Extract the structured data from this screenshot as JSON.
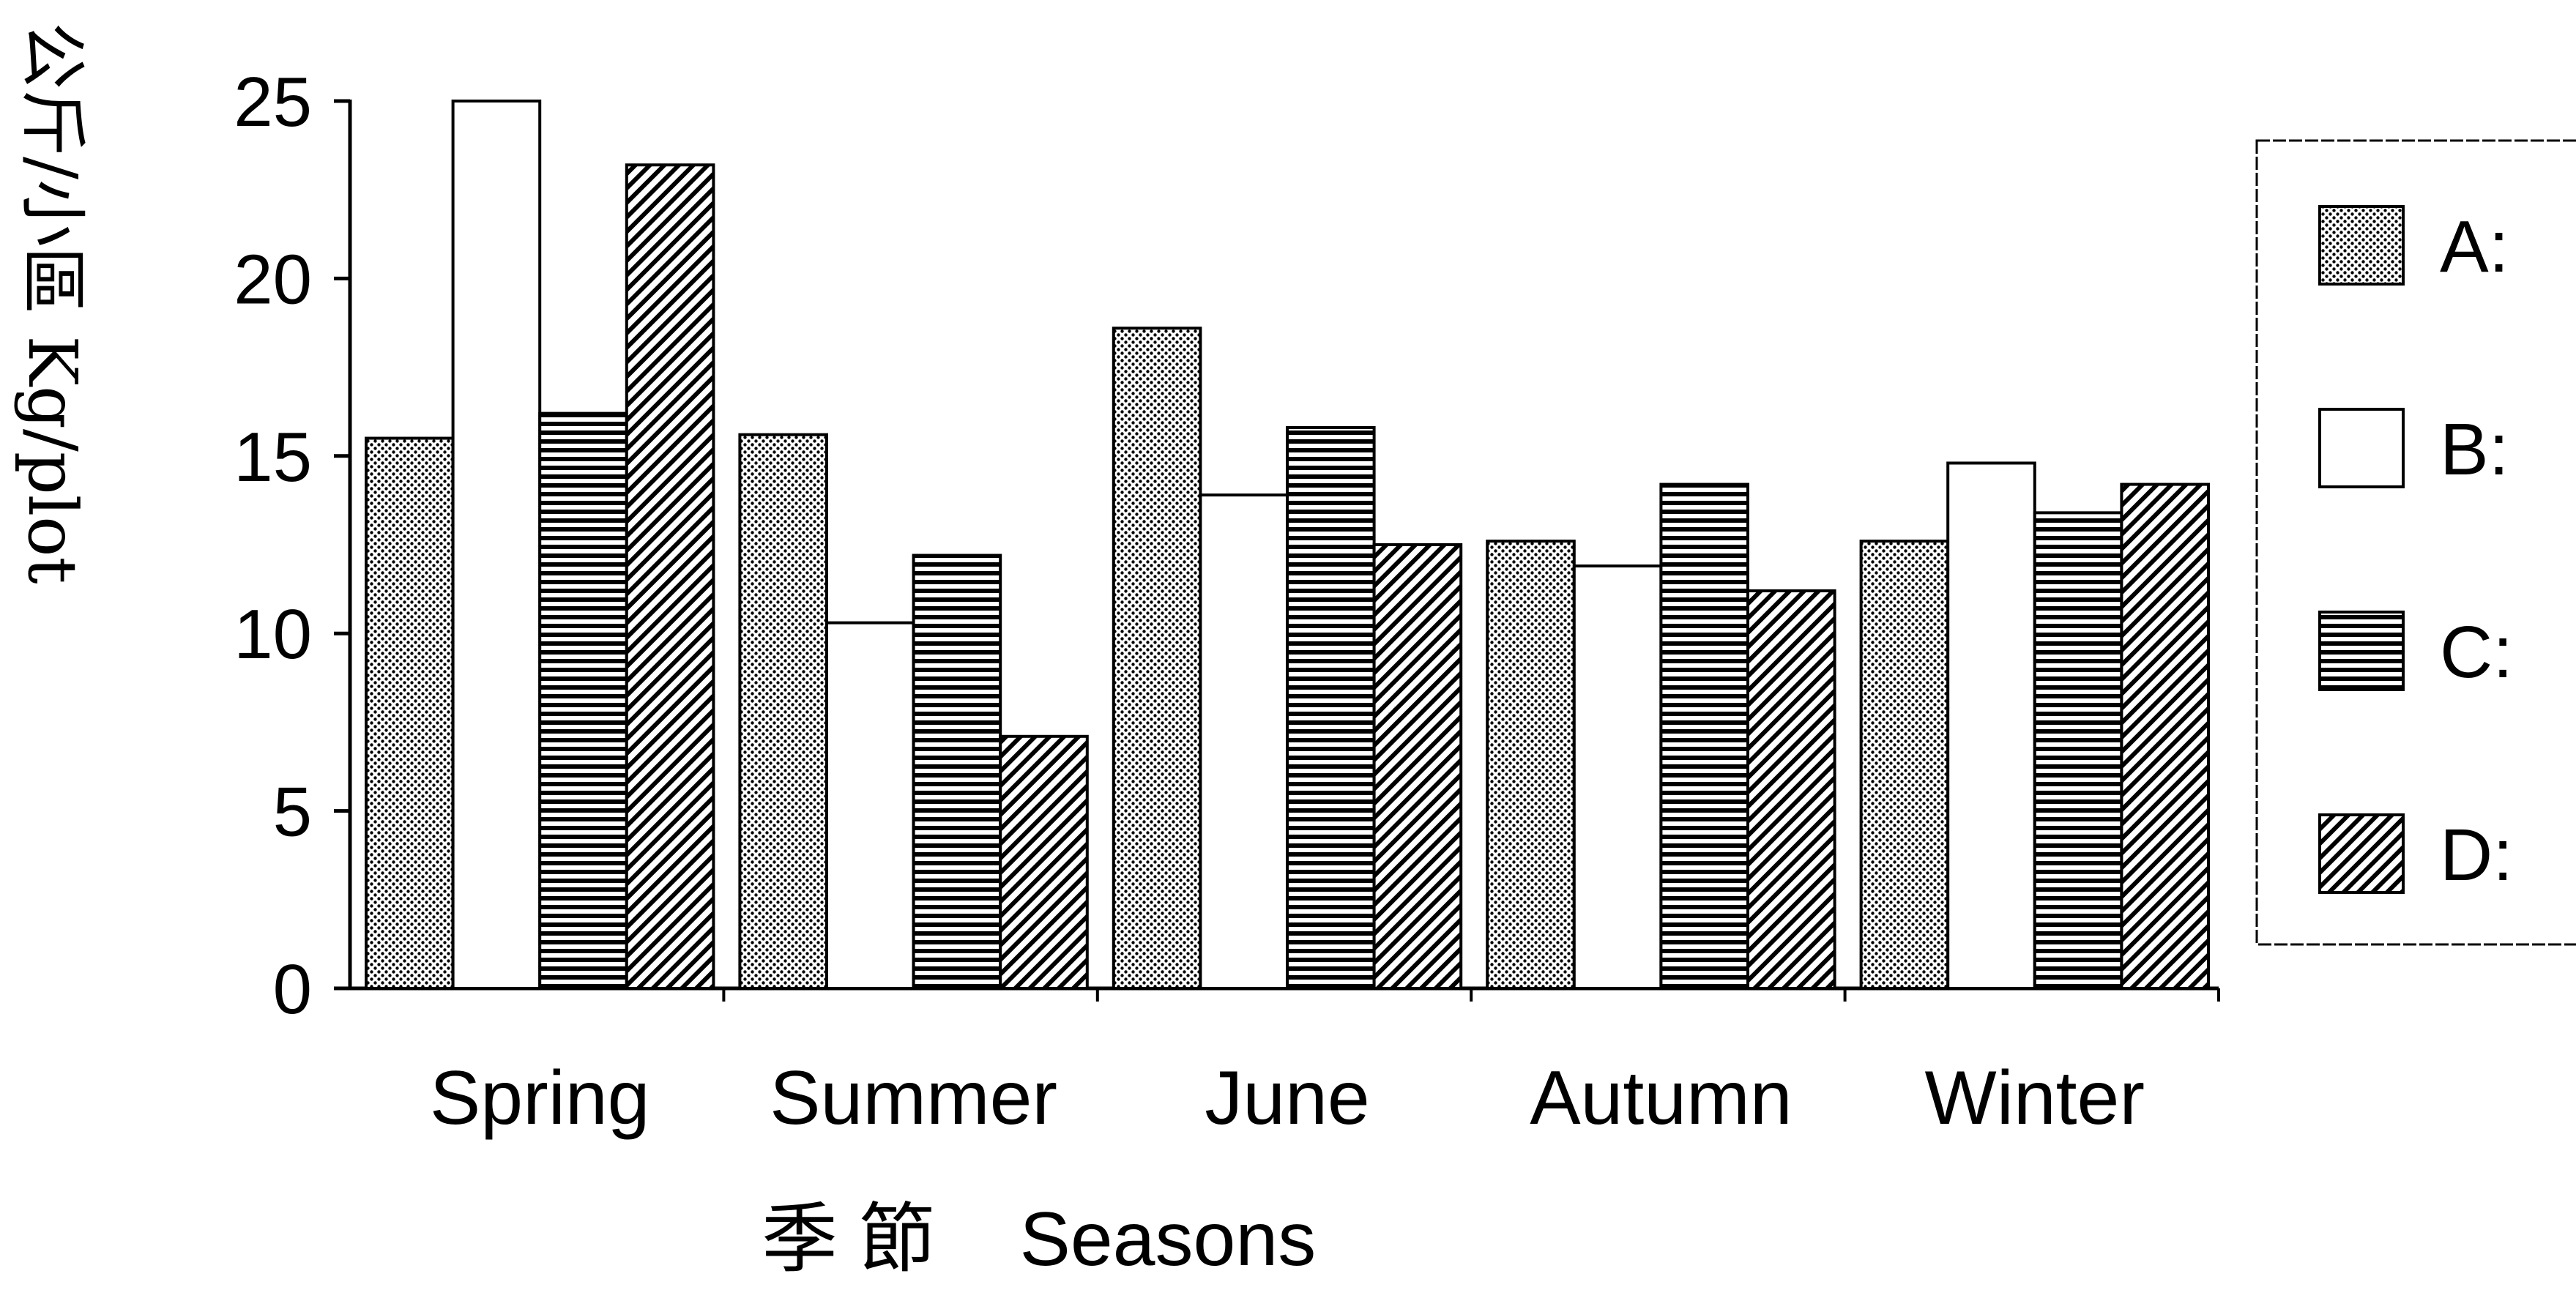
{
  "chart_data": {
    "type": "bar",
    "title": "",
    "xlabel": "季 節    Seasons",
    "ylabel": "公斤/小區   Kg/plot",
    "ylim": [
      0,
      25
    ],
    "yticks": [
      0,
      5,
      10,
      15,
      20,
      25
    ],
    "categories": [
      "Spring",
      "Summer",
      "June",
      "Autumn",
      "Winter"
    ],
    "legend_position": "right",
    "grid": false,
    "series": [
      {
        "name": "A:",
        "pattern": "dots",
        "values": [
          15.5,
          15.6,
          18.6,
          12.6,
          12.6
        ]
      },
      {
        "name": "B:",
        "pattern": "empty",
        "values": [
          25.0,
          10.3,
          13.9,
          11.9,
          14.8
        ]
      },
      {
        "name": "C:",
        "pattern": "horizontal",
        "values": [
          16.2,
          12.2,
          15.8,
          14.2,
          13.4
        ]
      },
      {
        "name": "D:",
        "pattern": "diagonal",
        "values": [
          23.2,
          7.1,
          12.5,
          11.2,
          14.2
        ]
      }
    ]
  }
}
